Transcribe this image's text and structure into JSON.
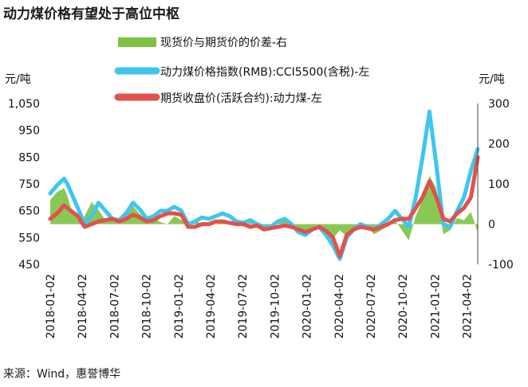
{
  "title": "动力煤价格有望处于高位中枢",
  "source": "来源：Wind，惠誉博华",
  "chart_data": {
    "type": "line",
    "left_unit": "元/吨",
    "right_unit": "元/吨",
    "left_axis": {
      "min": 450,
      "max": 1050,
      "ticks": [
        "1,050",
        "950",
        "850",
        "750",
        "650",
        "550",
        "450"
      ]
    },
    "right_axis": {
      "min": -100,
      "max": 300,
      "ticks": [
        "300",
        "200",
        "100",
        "0",
        "-100"
      ]
    },
    "x_ticks": [
      "2018-01-02",
      "2018-04-02",
      "2018-07-02",
      "2018-10-02",
      "2019-01-02",
      "2019-04-02",
      "2019-07-02",
      "2019-10-02",
      "2020-01-02",
      "2020-04-02",
      "2020-07-02",
      "2020-10-02",
      "2021-01-02",
      "2021-04-02"
    ],
    "legend_position": "top",
    "grid": false,
    "series": [
      {
        "name": "现货价与期货价的价差-右",
        "type": "area",
        "axis": "right",
        "color": "#7dc242",
        "points": [
          [
            0,
            60
          ],
          [
            1,
            80
          ],
          [
            2,
            90
          ],
          [
            2.5,
            70
          ],
          [
            3,
            40
          ],
          [
            4,
            10
          ],
          [
            5,
            20
          ],
          [
            6,
            55
          ],
          [
            7,
            35
          ],
          [
            8,
            10
          ],
          [
            9,
            15
          ],
          [
            10,
            5
          ],
          [
            11,
            20
          ],
          [
            12,
            45
          ],
          [
            13,
            25
          ],
          [
            14,
            10
          ],
          [
            15,
            15
          ],
          [
            16,
            5
          ],
          [
            17,
            0
          ],
          [
            18,
            20
          ],
          [
            19,
            10
          ],
          [
            20,
            5
          ],
          [
            21,
            10
          ],
          [
            22,
            0
          ],
          [
            23,
            -5
          ],
          [
            24,
            0
          ],
          [
            25,
            10
          ],
          [
            26,
            5
          ],
          [
            27,
            0
          ],
          [
            28,
            -5
          ],
          [
            29,
            5
          ],
          [
            30,
            -5
          ],
          [
            31,
            -10
          ],
          [
            32,
            -5
          ],
          [
            33,
            5
          ],
          [
            34,
            10
          ],
          [
            35,
            -5
          ],
          [
            36,
            -15
          ],
          [
            37,
            -20
          ],
          [
            38,
            -10
          ],
          [
            39,
            -5
          ],
          [
            40,
            -25
          ],
          [
            41,
            -35
          ],
          [
            42,
            -15
          ],
          [
            43,
            -30
          ],
          [
            44,
            -10
          ],
          [
            45,
            5
          ],
          [
            46,
            -10
          ],
          [
            47,
            -25
          ],
          [
            48,
            -15
          ],
          [
            49,
            -5
          ],
          [
            50,
            10
          ],
          [
            51,
            -15
          ],
          [
            52,
            -40
          ],
          [
            53,
            20
          ],
          [
            54,
            60
          ],
          [
            55,
            120
          ],
          [
            56,
            90
          ],
          [
            57,
            -25
          ],
          [
            58,
            -15
          ],
          [
            59,
            15
          ],
          [
            60,
            10
          ],
          [
            61,
            30
          ],
          [
            62,
            -20
          ]
        ]
      },
      {
        "name": "动力煤价格指数(RMB):CCI5500(含税)-左",
        "type": "line",
        "axis": "left",
        "color": "#3ec6f0",
        "points": [
          [
            0,
            715
          ],
          [
            1,
            745
          ],
          [
            2,
            770
          ],
          [
            2.5,
            750
          ],
          [
            3,
            720
          ],
          [
            4,
            660
          ],
          [
            5,
            600
          ],
          [
            6,
            630
          ],
          [
            7,
            680
          ],
          [
            8,
            650
          ],
          [
            9,
            620
          ],
          [
            10,
            615
          ],
          [
            11,
            640
          ],
          [
            12,
            680
          ],
          [
            13,
            655
          ],
          [
            14,
            620
          ],
          [
            15,
            630
          ],
          [
            16,
            650
          ],
          [
            17,
            650
          ],
          [
            18,
            665
          ],
          [
            19,
            650
          ],
          [
            20,
            600
          ],
          [
            21,
            610
          ],
          [
            22,
            625
          ],
          [
            23,
            620
          ],
          [
            24,
            630
          ],
          [
            25,
            640
          ],
          [
            26,
            630
          ],
          [
            27,
            610
          ],
          [
            28,
            605
          ],
          [
            29,
            615
          ],
          [
            30,
            600
          ],
          [
            31,
            590
          ],
          [
            32,
            590
          ],
          [
            33,
            610
          ],
          [
            34,
            620
          ],
          [
            35,
            600
          ],
          [
            36,
            570
          ],
          [
            37,
            560
          ],
          [
            38,
            580
          ],
          [
            39,
            590
          ],
          [
            40,
            560
          ],
          [
            41,
            520
          ],
          [
            42,
            470
          ],
          [
            43,
            550
          ],
          [
            44,
            580
          ],
          [
            45,
            600
          ],
          [
            46,
            590
          ],
          [
            47,
            580
          ],
          [
            48,
            600
          ],
          [
            49,
            620
          ],
          [
            50,
            650
          ],
          [
            51,
            620
          ],
          [
            52,
            590
          ],
          [
            53,
            700
          ],
          [
            54,
            850
          ],
          [
            55,
            1020
          ],
          [
            56,
            820
          ],
          [
            57,
            600
          ],
          [
            58,
            590
          ],
          [
            59,
            650
          ],
          [
            60,
            700
          ],
          [
            61,
            800
          ],
          [
            62,
            880
          ]
        ]
      },
      {
        "name": "期货收盘价(活跃合约):动力煤-左",
        "type": "line",
        "axis": "left",
        "color": "#e0524c",
        "points": [
          [
            0,
            620
          ],
          [
            1,
            640
          ],
          [
            2,
            670
          ],
          [
            2.5,
            660
          ],
          [
            3,
            650
          ],
          [
            4,
            630
          ],
          [
            5,
            590
          ],
          [
            6,
            600
          ],
          [
            7,
            610
          ],
          [
            8,
            615
          ],
          [
            9,
            620
          ],
          [
            10,
            610
          ],
          [
            11,
            620
          ],
          [
            12,
            635
          ],
          [
            13,
            625
          ],
          [
            14,
            610
          ],
          [
            15,
            615
          ],
          [
            16,
            630
          ],
          [
            17,
            640
          ],
          [
            18,
            640
          ],
          [
            19,
            635
          ],
          [
            20,
            590
          ],
          [
            21,
            590
          ],
          [
            22,
            600
          ],
          [
            23,
            600
          ],
          [
            24,
            610
          ],
          [
            25,
            610
          ],
          [
            26,
            605
          ],
          [
            27,
            600
          ],
          [
            28,
            600
          ],
          [
            29,
            590
          ],
          [
            30,
            595
          ],
          [
            31,
            580
          ],
          [
            32,
            585
          ],
          [
            33,
            590
          ],
          [
            34,
            595
          ],
          [
            35,
            590
          ],
          [
            36,
            580
          ],
          [
            37,
            570
          ],
          [
            38,
            580
          ],
          [
            39,
            590
          ],
          [
            40,
            575
          ],
          [
            41,
            550
          ],
          [
            42,
            480
          ],
          [
            43,
            560
          ],
          [
            44,
            580
          ],
          [
            45,
            590
          ],
          [
            46,
            585
          ],
          [
            47,
            580
          ],
          [
            48,
            590
          ],
          [
            49,
            600
          ],
          [
            50,
            615
          ],
          [
            51,
            620
          ],
          [
            52,
            620
          ],
          [
            53,
            660
          ],
          [
            54,
            700
          ],
          [
            55,
            760
          ],
          [
            56,
            700
          ],
          [
            57,
            620
          ],
          [
            58,
            610
          ],
          [
            59,
            640
          ],
          [
            60,
            660
          ],
          [
            61,
            700
          ],
          [
            62,
            850
          ]
        ]
      }
    ]
  }
}
